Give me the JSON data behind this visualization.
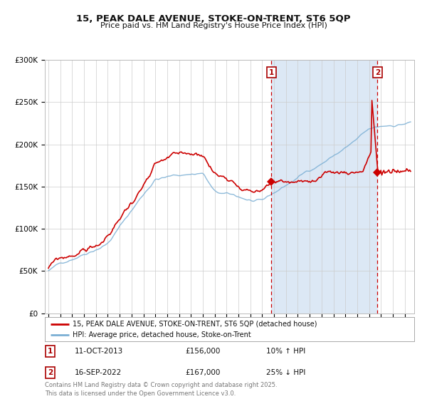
{
  "title_line1": "15, PEAK DALE AVENUE, STOKE-ON-TRENT, ST6 5QP",
  "title_line2": "Price paid vs. HM Land Registry's House Price Index (HPI)",
  "legend_label1": "15, PEAK DALE AVENUE, STOKE-ON-TRENT, ST6 5QP (detached house)",
  "legend_label2": "HPI: Average price, detached house, Stoke-on-Trent",
  "annotation1_label": "1",
  "annotation1_date": "11-OCT-2013",
  "annotation1_price": "£156,000",
  "annotation1_hpi": "10% ↑ HPI",
  "annotation2_label": "2",
  "annotation2_date": "16-SEP-2022",
  "annotation2_price": "£167,000",
  "annotation2_hpi": "25% ↓ HPI",
  "sale1_year": 2013.78,
  "sale1_price": 156000,
  "sale2_year": 2022.71,
  "sale2_price": 167000,
  "ylabel_ticks": [
    "£0",
    "£50K",
    "£100K",
    "£150K",
    "£200K",
    "£250K",
    "£300K"
  ],
  "ylabel_values": [
    0,
    50000,
    100000,
    150000,
    200000,
    250000,
    300000
  ],
  "copyright_text": "Contains HM Land Registry data © Crown copyright and database right 2025.\nThis data is licensed under the Open Government Licence v3.0.",
  "line_color_property": "#cc0000",
  "line_color_hpi": "#7bafd4",
  "shaded_region_color": "#dce8f5",
  "dashed_line_color": "#cc0000",
  "grid_color": "#cccccc"
}
